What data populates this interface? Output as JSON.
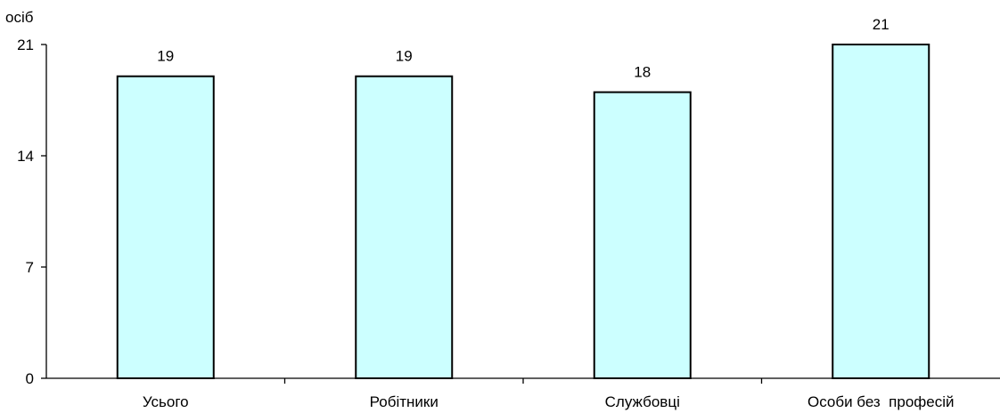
{
  "chart_data": {
    "type": "bar",
    "categories": [
      "Усього",
      "Робітники",
      "Службовці",
      "Особи без  професій"
    ],
    "values": [
      19,
      19,
      18,
      21
    ],
    "ylabel": "осіб",
    "ylim": [
      0,
      21
    ],
    "yticks": [
      0,
      7,
      14,
      21
    ],
    "grid": false,
    "legend": "none",
    "colors": {
      "bar_fill": "#ccffff",
      "bar_stroke": "#000000",
      "axis": "#000000",
      "background": "#ffffff"
    }
  }
}
